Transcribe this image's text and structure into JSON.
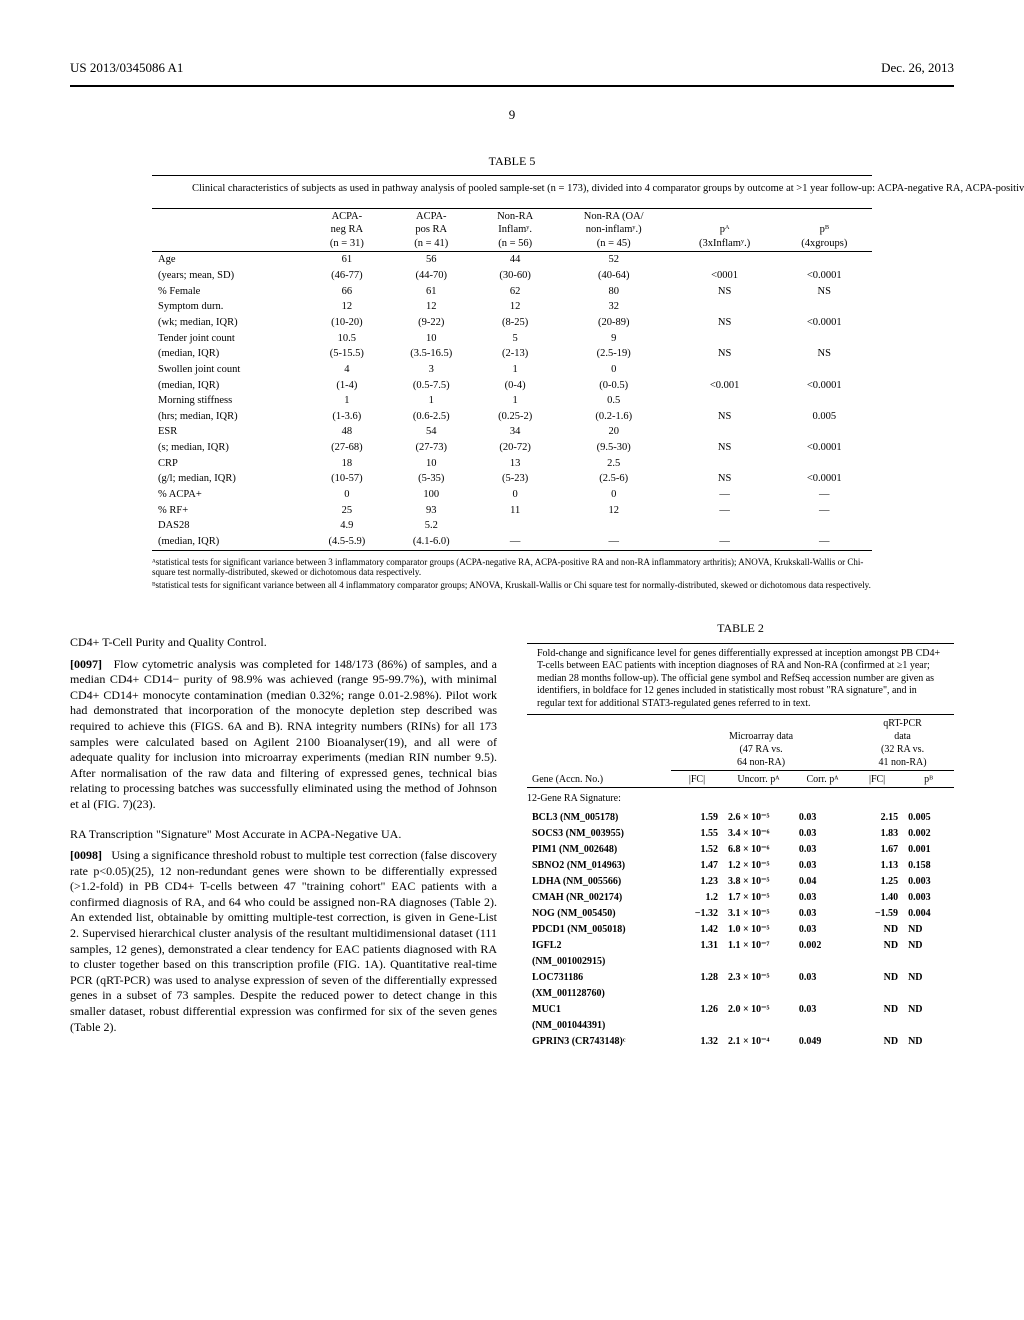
{
  "header": {
    "left": "US 2013/0345086 A1",
    "right": "Dec. 26, 2013",
    "page_number": "9"
  },
  "table5": {
    "title": "TABLE 5",
    "caption": "Clinical characteristics of subjects as used in pathway analysis of pooled sample-set (n = 173), divided into 4 comparator groups by outcome at >1 year follow-up: ACPA-negative RA, ACPA-positive RA, inflammatory and non-inflammatory control groups. Values are mean (1 SD range), median (IQR) or % for normally-distributed, skewed or dichotomous data respectively.",
    "columns": [
      "",
      "ACPA-\nneg RA\n(n = 31)",
      "ACPA-\npos RA\n(n = 41)",
      "Non-RA\nInflamʸ.\n(n = 56)",
      "Non-RA (OA/\nnon-inflamʸ.)\n(n = 45)",
      "pᴬ\n(3xInflamʸ.)",
      "pᴮ\n(4xgroups)"
    ],
    "rows": [
      [
        "Age",
        "61",
        "56",
        "44",
        "52",
        "",
        ""
      ],
      [
        "(years; mean, SD)",
        "(46-77)",
        "(44-70)",
        "(30-60)",
        "(40-64)",
        "<0001",
        "<0.0001"
      ],
      [
        "% Female",
        "66",
        "61",
        "62",
        "80",
        "NS",
        "NS"
      ],
      [
        "Symptom durn.",
        "12",
        "12",
        "12",
        "32",
        "",
        ""
      ],
      [
        "(wk; median, IQR)",
        "(10-20)",
        "(9-22)",
        "(8-25)",
        "(20-89)",
        "NS",
        "<0.0001"
      ],
      [
        "Tender joint count",
        "10.5",
        "10",
        "5",
        "9",
        "",
        ""
      ],
      [
        "(median, IQR)",
        "(5-15.5)",
        "(3.5-16.5)",
        "(2-13)",
        "(2.5-19)",
        "NS",
        "NS"
      ],
      [
        "Swollen joint count",
        "4",
        "3",
        "1",
        "0",
        "",
        ""
      ],
      [
        "(median, IQR)",
        "(1-4)",
        "(0.5-7.5)",
        "(0-4)",
        "(0-0.5)",
        "<0.001",
        "<0.0001"
      ],
      [
        "Morning stiffness",
        "1",
        "1",
        "1",
        "0.5",
        "",
        ""
      ],
      [
        "(hrs; median, IQR)",
        "(1-3.6)",
        "(0.6-2.5)",
        "(0.25-2)",
        "(0.2-1.6)",
        "NS",
        "0.005"
      ],
      [
        "ESR",
        "48",
        "54",
        "34",
        "20",
        "",
        ""
      ],
      [
        "(s; median, IQR)",
        "(27-68)",
        "(27-73)",
        "(20-72)",
        "(9.5-30)",
        "NS",
        "<0.0001"
      ],
      [
        "CRP",
        "18",
        "10",
        "13",
        "2.5",
        "",
        ""
      ],
      [
        "(g/l; median, IQR)",
        "(10-57)",
        "(5-35)",
        "(5-23)",
        "(2.5-6)",
        "NS",
        "<0.0001"
      ],
      [
        "% ACPA+",
        "0",
        "100",
        "0",
        "0",
        "—",
        "—"
      ],
      [
        "% RF+",
        "25",
        "93",
        "11",
        "12",
        "—",
        "—"
      ],
      [
        "DAS28",
        "4.9",
        "5.2",
        "",
        "",
        "",
        ""
      ],
      [
        "(median, IQR)",
        "(4.5-5.9)",
        "(4.1-6.0)",
        "—",
        "—",
        "—",
        "—"
      ]
    ],
    "footnote_a": "ᴬstatistical tests for significant variance between 3 inflammatory comparator groups (ACPA-negative RA, ACPA-positive RA and non-RA inflammatory arthritis); ANOVA, Krukskall-Wallis or Chi-square test normally-distributed, skewed or dichotomous data respectively.",
    "footnote_b": "ᴮstatistical tests for significant variance between all 4 inflammatory comparator groups; ANOVA, Kruskall-Wallis or Chi square test for normally-distributed, skewed or dichotomous data respectively."
  },
  "left_col": {
    "heading1": "CD4+ T-Cell Purity and Quality Control.",
    "para1_num": "[0097]",
    "para1": "Flow cytometric analysis was completed for 148/173 (86%) of samples, and a median CD4+ CD14− purity of 98.9% was achieved (range 95-99.7%), with minimal CD4+ CD14+ monocyte contamination (median 0.32%; range 0.01-2.98%). Pilot work had demonstrated that incorporation of the monocyte depletion step described was required to achieve this (FIGS. 6A and B). RNA integrity numbers (RINs) for all 173 samples were calculated based on Agilent 2100 Bioanalyser(19), and all were of adequate quality for inclusion into microarray experiments (median RIN number 9.5). After normalisation of the raw data and filtering of expressed genes, technical bias relating to processing batches was successfully eliminated using the method of Johnson et al (FIG. 7)(23).",
    "heading2": "RA Transcription \"Signature\" Most Accurate in ACPA-Negative UA.",
    "para2_num": "[0098]",
    "para2": "Using a significance threshold robust to multiple test correction (false discovery rate p<0.05)(25), 12 non-redundant genes were shown to be differentially expressed (>1.2-fold) in PB CD4+ T-cells between 47 \"training cohort\" EAC patients with a confirmed diagnosis of RA, and 64 who could be assigned non-RA diagnoses (Table 2). An extended list, obtainable by omitting multiple-test correction, is given in Gene-List 2. Supervised hierarchical cluster analysis of the resultant multidimensional dataset (111 samples, 12 genes), demonstrated a clear tendency for EAC patients diagnosed with RA to cluster together based on this transcription profile (FIG. 1A). Quantitative real-time PCR (qRT-PCR) was used to analyse expression of seven of the differentially expressed genes in a subset of 73 samples. Despite the reduced power to detect change in this smaller dataset, robust differential expression was confirmed for six of the seven genes (Table 2)."
  },
  "table2": {
    "title": "TABLE 2",
    "caption": "Fold-change and significance level for genes differentially expressed at inception amongst PB CD4+ T-cells between EAC patients with inception diagnoses of RA and Non-RA (confirmed at ≥1 year; median 28 months follow-up). The official gene symbol and RefSeq accession number are given as identifiers, in boldface for 12 genes included in statistically most robust \"RA signature\", and in regular text for additional STAT3-regulated genes referred to in text.",
    "header_group1": "Microarray data\n(47 RA vs.\n64 non-RA)",
    "header_group2": "qRT-PCR\ndata\n(32 RA vs.\n41 non-RA)",
    "col_gene": "Gene (Accn. No.)",
    "col_fc1": "|FC|",
    "col_uncorr": "Uncorr. pᴬ",
    "col_corr": "Corr. pᴬ",
    "col_fc2": "|FC|",
    "col_pb": "pᴮ",
    "section": "12-Gene RA Signature:",
    "rows": [
      {
        "gene": "BCL3 (NM_005178)",
        "bold": true,
        "fc1": "1.59",
        "uncorr": "2.6 × 10⁻⁵",
        "corr": "0.03",
        "fc2": "2.15",
        "pb": "0.005"
      },
      {
        "gene": "SOCS3 (NM_003955)",
        "bold": true,
        "fc1": "1.55",
        "uncorr": "3.4 × 10⁻⁶",
        "corr": "0.03",
        "fc2": "1.83",
        "pb": "0.002"
      },
      {
        "gene": "PIM1 (NM_002648)",
        "bold": true,
        "fc1": "1.52",
        "uncorr": "6.8 × 10⁻⁶",
        "corr": "0.03",
        "fc2": "1.67",
        "pb": "0.001"
      },
      {
        "gene": "SBNO2 (NM_014963)",
        "bold": true,
        "fc1": "1.47",
        "uncorr": "1.2 × 10⁻⁵",
        "corr": "0.03",
        "fc2": "1.13",
        "pb": "0.158"
      },
      {
        "gene": "LDHA (NM_005566)",
        "bold": true,
        "fc1": "1.23",
        "uncorr": "3.8 × 10⁻⁵",
        "corr": "0.04",
        "fc2": "1.25",
        "pb": "0.003"
      },
      {
        "gene": "CMAH (NR_002174)",
        "bold": true,
        "fc1": "1.2",
        "uncorr": "1.7 × 10⁻⁵",
        "corr": "0.03",
        "fc2": "1.40",
        "pb": "0.003"
      },
      {
        "gene": "NOG (NM_005450)",
        "bold": true,
        "fc1": "−1.32",
        "uncorr": "3.1 × 10⁻⁵",
        "corr": "0.03",
        "fc2": "−1.59",
        "pb": "0.004"
      },
      {
        "gene": "PDCD1 (NM_005018)",
        "bold": true,
        "fc1": "1.42",
        "uncorr": "1.0 × 10⁻⁵",
        "corr": "0.03",
        "fc2": "ND",
        "pb": "ND"
      },
      {
        "gene": "IGFL2",
        "bold": true,
        "fc1": "1.31",
        "uncorr": "1.1 × 10⁻⁷",
        "corr": "0.002",
        "fc2": "ND",
        "pb": "ND"
      },
      {
        "gene": "(NM_001002915)",
        "bold": true,
        "fc1": "",
        "uncorr": "",
        "corr": "",
        "fc2": "",
        "pb": ""
      },
      {
        "gene": "LOC731186",
        "bold": true,
        "fc1": "1.28",
        "uncorr": "2.3 × 10⁻⁵",
        "corr": "0.03",
        "fc2": "ND",
        "pb": "ND"
      },
      {
        "gene": "(XM_001128760)",
        "bold": true,
        "fc1": "",
        "uncorr": "",
        "corr": "",
        "fc2": "",
        "pb": ""
      },
      {
        "gene": "MUC1",
        "bold": true,
        "fc1": "1.26",
        "uncorr": "2.0 × 10⁻⁵",
        "corr": "0.03",
        "fc2": "ND",
        "pb": "ND"
      },
      {
        "gene": "(NM_001044391)",
        "bold": true,
        "fc1": "",
        "uncorr": "",
        "corr": "",
        "fc2": "",
        "pb": ""
      },
      {
        "gene": "GPRIN3 (CR743148)ᶜ",
        "bold": true,
        "fc1": "1.32",
        "uncorr": "2.1 × 10⁻⁴",
        "corr": "0.049",
        "fc2": "ND",
        "pb": "ND"
      }
    ]
  }
}
